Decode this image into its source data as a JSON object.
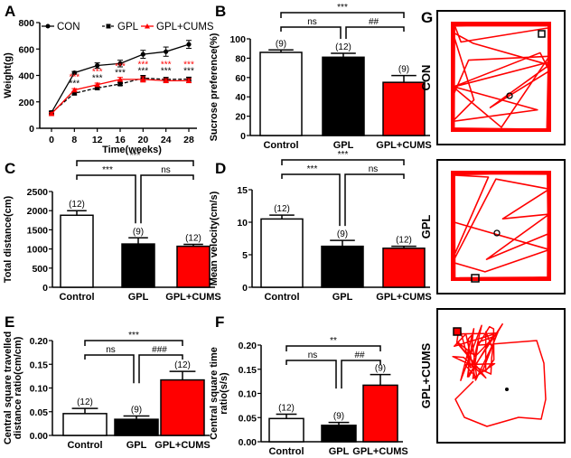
{
  "panel_labels": [
    "A",
    "B",
    "C",
    "D",
    "E",
    "F",
    "G"
  ],
  "colors": {
    "con": "#000000",
    "gpl": "#000000",
    "cums": "#ff0000",
    "control_bar": "#ffffff",
    "gpl_bar": "#000000",
    "cums_bar": "#ff0000",
    "track": "#ff0000"
  },
  "chart_data": [
    {
      "id": "A",
      "type": "line",
      "title": "",
      "xlabel": "Time(weeks)",
      "ylabel": "Weight(g)",
      "x": [
        0,
        8,
        12,
        16,
        20,
        24,
        28
      ],
      "xticks": [
        "0",
        "8",
        "12",
        "16",
        "20",
        "24",
        "28"
      ],
      "ylim": [
        0,
        800
      ],
      "yticks": [
        "0",
        "200",
        "400",
        "600",
        "800"
      ],
      "legend": "top",
      "series": [
        {
          "name": "CON",
          "marker": "circle",
          "line": "solid",
          "color": "#000000",
          "values": [
            120,
            420,
            475,
            490,
            560,
            580,
            635
          ],
          "errors": [
            10,
            10,
            20,
            25,
            30,
            35,
            30
          ]
        },
        {
          "name": "GPL",
          "marker": "square",
          "line": "dashed",
          "color": "#000000",
          "values": [
            118,
            265,
            305,
            335,
            380,
            370,
            372
          ],
          "errors": [
            8,
            12,
            12,
            10,
            20,
            15,
            15
          ]
        },
        {
          "name": "GPL+CUMS",
          "marker": "triangle",
          "line": "solid",
          "color": "#ff0000",
          "values": [
            110,
            290,
            330,
            370,
            370,
            360,
            360
          ],
          "errors": [
            8,
            10,
            12,
            15,
            20,
            15,
            15
          ]
        }
      ],
      "annotations": [
        {
          "x": 8,
          "black": "***",
          "red": "***"
        },
        {
          "x": 12,
          "black": "***",
          "red": "***"
        },
        {
          "x": 16,
          "black": "***",
          "red": "***"
        },
        {
          "x": 20,
          "black": "***",
          "red": "***"
        },
        {
          "x": 24,
          "black": "***",
          "red": "***"
        },
        {
          "x": 28,
          "black": "***",
          "red": "***"
        }
      ]
    },
    {
      "id": "B",
      "type": "bar",
      "ylabel": "Sucrose preference(%)",
      "categories": [
        "Control",
        "GPL",
        "GPL+CUMS"
      ],
      "values": [
        86,
        81,
        55
      ],
      "errors": [
        2.5,
        4,
        7
      ],
      "n": [
        "(9)",
        "(12)",
        "(9)"
      ],
      "ylim": [
        0,
        100
      ],
      "yticks": [
        "0",
        "20",
        "40",
        "60",
        "80",
        "100"
      ],
      "sig": {
        "outer": "***",
        "left": "ns",
        "right": "##"
      }
    },
    {
      "id": "C",
      "type": "bar",
      "ylabel": "Total distance(cm)",
      "categories": [
        "Control",
        "GPL",
        "GPL+CUMS"
      ],
      "values": [
        1880,
        1130,
        1070
      ],
      "errors": [
        120,
        160,
        50
      ],
      "n": [
        "(12)",
        "(9)",
        "(12)"
      ],
      "ylim": [
        0,
        2500
      ],
      "yticks": [
        "0",
        "500",
        "1000",
        "1500",
        "2000",
        "2500"
      ],
      "sig": {
        "outer": "***",
        "left": "***",
        "right": "ns"
      }
    },
    {
      "id": "D",
      "type": "bar",
      "ylabel": "Mean velocity(cm/s)",
      "categories": [
        "Control",
        "GPL",
        "GPL+CUMS"
      ],
      "values": [
        10.5,
        6.3,
        6.0
      ],
      "errors": [
        0.6,
        0.9,
        0.3
      ],
      "n": [
        "(12)",
        "(9)",
        "(12)"
      ],
      "ylim": [
        0,
        15
      ],
      "yticks": [
        "0",
        "5",
        "10",
        "15"
      ],
      "sig": {
        "outer": "***",
        "left": "***",
        "right": "ns"
      }
    },
    {
      "id": "E",
      "type": "bar",
      "ylabel_lines": [
        "Central square travelled",
        "distance ratio(cm/cm)"
      ],
      "categories": [
        "Control",
        "GPL",
        "GPL+CUMS"
      ],
      "values": [
        0.046,
        0.034,
        0.117
      ],
      "errors": [
        0.011,
        0.007,
        0.018
      ],
      "n": [
        "(12)",
        "(9)",
        "(12)"
      ],
      "ylim": [
        0,
        0.2
      ],
      "yticks": [
        "0.00",
        "0.05",
        "0.10",
        "0.15",
        "0.20"
      ],
      "sig": {
        "outer": "***",
        "left": "ns",
        "right": "###"
      }
    },
    {
      "id": "F",
      "type": "bar",
      "ylabel_lines": [
        "Central square time",
        "ratio(s/s)"
      ],
      "categories": [
        "Control",
        "GPL",
        "GPL+CUMS"
      ],
      "values": [
        0.048,
        0.034,
        0.117
      ],
      "errors": [
        0.009,
        0.006,
        0.022
      ],
      "n": [
        "(12)",
        "(9)",
        "(9)"
      ],
      "ylim": [
        0,
        0.2
      ],
      "yticks": [
        "0.00",
        "0.05",
        "0.10",
        "0.15",
        "0.20"
      ],
      "sig": {
        "outer": "**",
        "left": "ns",
        "right": "##"
      }
    }
  ],
  "tracks": {
    "label": "G",
    "groups": [
      "CON",
      "GPL",
      "GPL+CUMS"
    ]
  }
}
